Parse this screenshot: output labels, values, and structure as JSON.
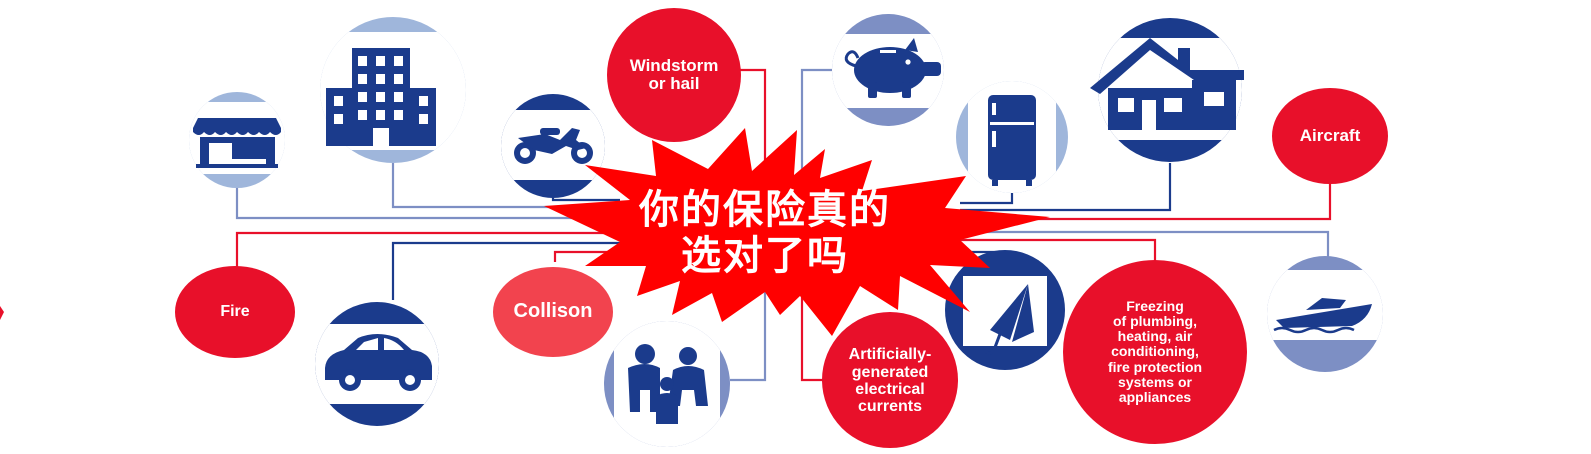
{
  "colors": {
    "navy": "#1b3b8c",
    "red": "#e8102a",
    "light_blue": "#9fb6db",
    "line_blue": "#7d8fc4",
    "line_red": "#d9363e"
  },
  "center": {
    "line1": "你的保险真的",
    "line2": "选对了吗"
  },
  "labels": {
    "windstorm_line1": "Windstorm",
    "windstorm_line2": "or hail",
    "aircraft": "Aircraft",
    "fire": "Fire",
    "collison": "Collison",
    "electrical_line1": "Artificially-",
    "electrical_line2": "generated",
    "electrical_line3": "electrical",
    "electrical_line4": "currents",
    "freezing_line1": "Freezing",
    "freezing_line2": "of plumbing,",
    "freezing_line3": "heating, air",
    "freezing_line4": "conditioning,",
    "freezing_line5": "fire protection",
    "freezing_line6": "systems or",
    "freezing_line7": "appliances"
  },
  "icons": [
    "storefront-icon",
    "office-building-icon",
    "motorcycle-icon",
    "piggy-bank-icon",
    "refrigerator-icon",
    "house-icon",
    "car-icon",
    "family-icon",
    "broken-umbrella-icon",
    "speedboat-icon"
  ]
}
